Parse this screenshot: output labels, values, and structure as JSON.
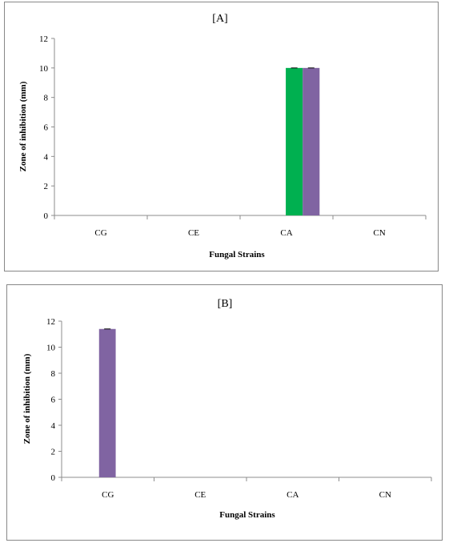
{
  "chart_data": [
    {
      "type": "bar",
      "title": "[A]",
      "xlabel": "Fungal Strains",
      "ylabel": "Zone of inhibition (mm)",
      "categories": [
        "CG",
        "CE",
        "CA",
        "CN"
      ],
      "yticks": [
        "0",
        "2",
        "4",
        "6",
        "8",
        "10",
        "12"
      ],
      "ylim": [
        0,
        12
      ],
      "grid": false,
      "legend": "none",
      "series": [
        {
          "values": [
            0,
            0,
            10,
            0
          ],
          "color": "#00b050"
        },
        {
          "values": [
            0,
            0,
            10,
            0
          ],
          "color": "#8064a2"
        }
      ]
    },
    {
      "type": "bar",
      "title": "[B]",
      "xlabel": "Fungal Strains",
      "ylabel": "Zone of inhibition (mm)",
      "categories": [
        "CG",
        "CE",
        "CA",
        "CN"
      ],
      "yticks": [
        "0",
        "2",
        "4",
        "6",
        "8",
        "10",
        "12"
      ],
      "ylim": [
        0,
        12
      ],
      "grid": false,
      "legend": "none",
      "series": [
        {
          "values": [
            11.4,
            0,
            0,
            0
          ],
          "color": "#8064a2"
        }
      ]
    }
  ]
}
